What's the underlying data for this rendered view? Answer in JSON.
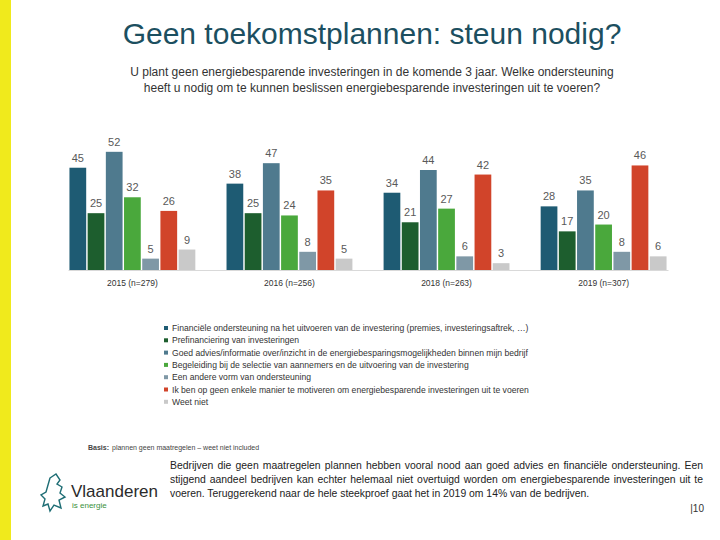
{
  "chart_data": {
    "type": "bar",
    "title": "Geen toekomstplannen: steun nodig?",
    "subtitle": [
      "U plant geen energiebesparende investeringen in de komende 3 jaar. Welke ondersteuning",
      "heeft u nodig om te kunnen beslissen energiebesparende investeringen uit te voeren?"
    ],
    "categories": [
      "2015 (n=279)",
      "2016 (n=256)",
      "2018 (n=263)",
      "2019 (n=307)"
    ],
    "series": [
      {
        "name": "Financiële ondersteuning na het uitvoeren van de investering (premies, investeringsaftrek, …)",
        "color": "#1e5b73",
        "values": [
          45,
          38,
          34,
          28
        ]
      },
      {
        "name": "Prefinanciering van investeringen",
        "color": "#1d5e2e",
        "values": [
          25,
          25,
          21,
          17
        ]
      },
      {
        "name": "Goed advies/informatie over/inzicht in de energiebesparingsmogelijkheden binnen mijn bedrijf",
        "color": "#4f7a8e",
        "values": [
          52,
          47,
          44,
          35
        ]
      },
      {
        "name": "Begeleiding bij de selectie van aannemers en de uitvoering van de investering",
        "color": "#4aa83c",
        "values": [
          32,
          24,
          27,
          20
        ]
      },
      {
        "name": "Een andere vorm van ondersteuning",
        "color": "#7f98a6",
        "values": [
          5,
          8,
          6,
          8
        ]
      },
      {
        "name": "Ik ben op geen enkele manier te motiveren om energiebesparende investeringen uit te voeren",
        "color": "#d1442a",
        "values": [
          26,
          35,
          42,
          46
        ]
      },
      {
        "name": "Weet niet",
        "color": "#c9c9c9",
        "values": [
          9,
          5,
          3,
          6
        ]
      }
    ],
    "ylim": [
      0,
      55
    ],
    "data_labels": true,
    "tick_labels": "x",
    "legend": "bottom",
    "grid": false
  },
  "footer": {
    "note_label": "Basis:",
    "note": "plannen geen maatregelen – weet niet included",
    "text": "Bedrijven die geen maatregelen plannen hebben vooral nood aan goed advies en financiële ondersteuning. Een stijgend aandeel bedrijven kan echter helemaal niet overtuigd worden om energiebesparende investeringen uit te voeren. Teruggerekend naar de hele steekproef gaat het in 2019 om 14% van de bedrijven.",
    "logo": "Vlaanderen",
    "tagline": "is energie",
    "page": "|10"
  }
}
